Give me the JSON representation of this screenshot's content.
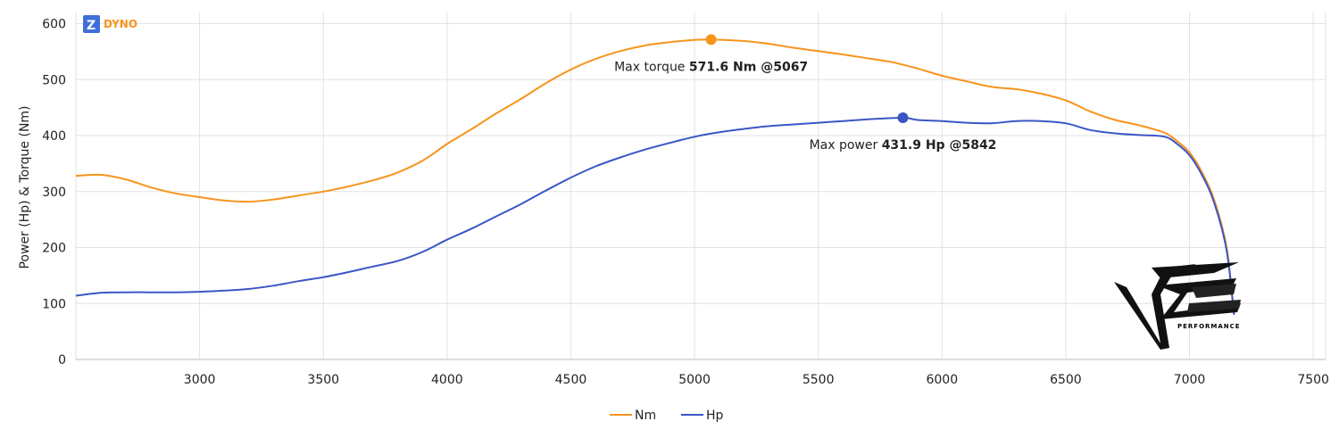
{
  "brand": {
    "badge": "Z",
    "name": "DYNO",
    "badge_color": "#3f6fd8",
    "name_color": "#f7941d"
  },
  "logo": {
    "text": "PERFORMANCE"
  },
  "chart_data": {
    "type": "line",
    "title": "",
    "xlabel": "",
    "ylabel": "Power (Hp) & Torque (Nm)",
    "xlim": [
      2500,
      7550
    ],
    "ylim": [
      0,
      620
    ],
    "x_ticks": [
      3000,
      3500,
      4000,
      4500,
      5000,
      5500,
      6000,
      6500,
      7000,
      7500
    ],
    "y_ticks": [
      0,
      100,
      200,
      300,
      400,
      500,
      600
    ],
    "grid": true,
    "legend_position": "bottom-center",
    "series": [
      {
        "name": "Nm",
        "color": "#f7941d",
        "points": [
          [
            2500,
            328
          ],
          [
            2600,
            330
          ],
          [
            2700,
            322
          ],
          [
            2800,
            308
          ],
          [
            2900,
            297
          ],
          [
            3000,
            290
          ],
          [
            3100,
            284
          ],
          [
            3200,
            282
          ],
          [
            3300,
            286
          ],
          [
            3400,
            293
          ],
          [
            3500,
            300
          ],
          [
            3600,
            309
          ],
          [
            3700,
            320
          ],
          [
            3800,
            334
          ],
          [
            3900,
            355
          ],
          [
            4000,
            385
          ],
          [
            4100,
            412
          ],
          [
            4200,
            440
          ],
          [
            4300,
            466
          ],
          [
            4400,
            494
          ],
          [
            4500,
            518
          ],
          [
            4600,
            537
          ],
          [
            4700,
            551
          ],
          [
            4800,
            561
          ],
          [
            4900,
            567
          ],
          [
            5000,
            571
          ],
          [
            5067,
            571.6
          ],
          [
            5200,
            569
          ],
          [
            5300,
            564
          ],
          [
            5400,
            557
          ],
          [
            5500,
            551
          ],
          [
            5600,
            545
          ],
          [
            5700,
            538
          ],
          [
            5800,
            531
          ],
          [
            5900,
            520
          ],
          [
            6000,
            507
          ],
          [
            6100,
            497
          ],
          [
            6200,
            487
          ],
          [
            6300,
            483
          ],
          [
            6400,
            475
          ],
          [
            6500,
            463
          ],
          [
            6600,
            443
          ],
          [
            6700,
            428
          ],
          [
            6800,
            418
          ],
          [
            6900,
            405
          ],
          [
            6950,
            390
          ],
          [
            7000,
            370
          ],
          [
            7050,
            335
          ],
          [
            7100,
            285
          ],
          [
            7150,
            200
          ],
          [
            7180,
            80
          ]
        ]
      },
      {
        "name": "Hp",
        "color": "#3a56c5",
        "points": [
          [
            2500,
            114
          ],
          [
            2600,
            119
          ],
          [
            2700,
            120
          ],
          [
            2800,
            120
          ],
          [
            2900,
            120
          ],
          [
            3000,
            121
          ],
          [
            3100,
            123
          ],
          [
            3200,
            126
          ],
          [
            3300,
            132
          ],
          [
            3400,
            140
          ],
          [
            3500,
            147
          ],
          [
            3600,
            156
          ],
          [
            3700,
            166
          ],
          [
            3800,
            176
          ],
          [
            3900,
            192
          ],
          [
            4000,
            214
          ],
          [
            4100,
            234
          ],
          [
            4200,
            256
          ],
          [
            4300,
            278
          ],
          [
            4400,
            302
          ],
          [
            4500,
            325
          ],
          [
            4600,
            345
          ],
          [
            4700,
            361
          ],
          [
            4800,
            375
          ],
          [
            4900,
            387
          ],
          [
            5000,
            398
          ],
          [
            5100,
            406
          ],
          [
            5200,
            412
          ],
          [
            5300,
            417
          ],
          [
            5400,
            420
          ],
          [
            5500,
            423
          ],
          [
            5600,
            426
          ],
          [
            5700,
            429
          ],
          [
            5842,
            431.9
          ],
          [
            5900,
            428
          ],
          [
            6000,
            426
          ],
          [
            6100,
            423
          ],
          [
            6200,
            422
          ],
          [
            6300,
            426
          ],
          [
            6400,
            426
          ],
          [
            6500,
            422
          ],
          [
            6600,
            410
          ],
          [
            6700,
            404
          ],
          [
            6800,
            401
          ],
          [
            6900,
            398
          ],
          [
            6950,
            385
          ],
          [
            7000,
            365
          ],
          [
            7050,
            330
          ],
          [
            7100,
            280
          ],
          [
            7150,
            195
          ],
          [
            7180,
            80
          ]
        ]
      }
    ],
    "annotations": [
      {
        "series": "Nm",
        "x": 5067,
        "y": 571.6,
        "prefix": "Max torque ",
        "value": "571.6 Nm @5067"
      },
      {
        "series": "Hp",
        "x": 5842,
        "y": 431.9,
        "prefix": "Max power ",
        "value": "431.9 Hp @5842"
      }
    ]
  }
}
